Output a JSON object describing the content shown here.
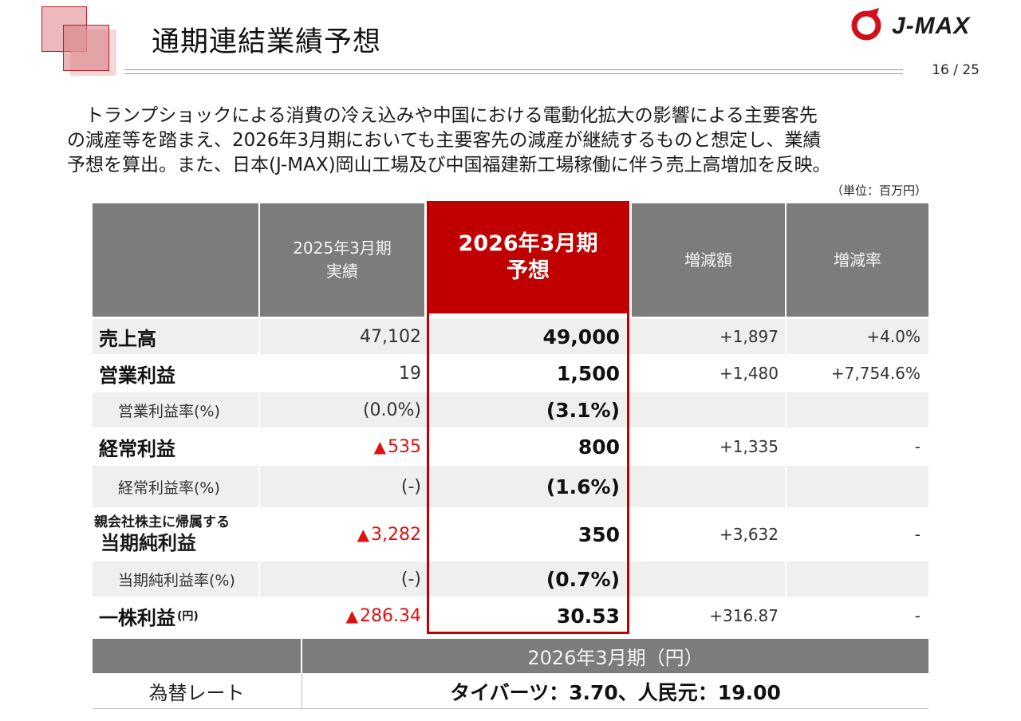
{
  "header": {
    "title": "通期連結業績予想",
    "page_number": "16 / 25",
    "logo_text": "J-MAX",
    "accent_color": "#c00000"
  },
  "intro": {
    "line1": "　トランプショックによる消費の冷え込みや中国における電動化拡大の影響による主要客先",
    "line2": "の減産等を踏まえ、2026年3月期においても主要客先の減産が継続するものと想定し、業績",
    "line3": "予想を算出。また、日本(J-MAX)岡山工場及び中国福建新工場稼働に伴う売上高増加を反映。"
  },
  "unit_note": "（単位：百万円）",
  "table": {
    "columns": {
      "prev_line1": "2025年3月期",
      "prev_line2": "実績",
      "fcst_line1": "2026年3月期",
      "fcst_line2": "予想",
      "change": "増減額",
      "rate": "増減率"
    },
    "rows": [
      {
        "label": "売上高",
        "prev": "47,102",
        "fcst": "49,000",
        "change": "+1,897",
        "rate": "+4.0%"
      },
      {
        "label": "営業利益",
        "prev": "19",
        "fcst": "1,500",
        "change": "+1,480",
        "rate": "+7,754.6%"
      },
      {
        "label": "営業利益率(%)",
        "prev": "(0.0%)",
        "fcst": "(3.1%)",
        "change": "",
        "rate": ""
      },
      {
        "label": "経常利益",
        "prev_mark": "▲",
        "prev": "535",
        "fcst": "800",
        "change": "+1,335",
        "rate": "-"
      },
      {
        "label": "経常利益率(%)",
        "prev": "(-)",
        "fcst": "(1.6%)",
        "change": "",
        "rate": ""
      },
      {
        "label_line1": "親会社株主に帰属する",
        "label_line2": "当期純利益",
        "prev_mark": "▲",
        "prev": "3,282",
        "fcst": "350",
        "change": "+3,632",
        "rate": "-"
      },
      {
        "label": "当期純利益率(%)",
        "prev": "(-)",
        "fcst": "(0.7%)",
        "change": "",
        "rate": ""
      },
      {
        "label": "一株利益",
        "label_unit": "(円)",
        "prev_mark": "▲",
        "prev": "286.34",
        "fcst": "30.53",
        "change": "+316.87",
        "rate": "-"
      }
    ]
  },
  "fx": {
    "header": "2026年3月期（円）",
    "label": "為替レート",
    "value": "タイバーツ：3.70、人民元：19.00"
  }
}
